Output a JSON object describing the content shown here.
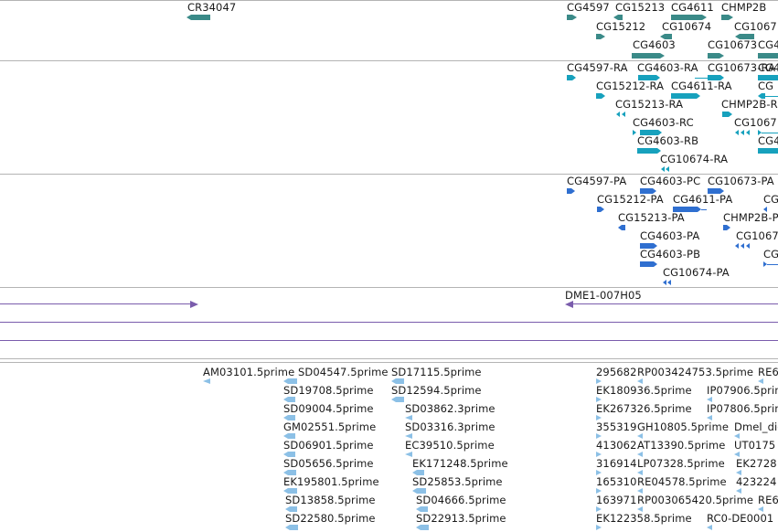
{
  "colors": {
    "gene": "#3a8a88",
    "mrna": "#17a1bd",
    "cds": "#2f6fd0",
    "ctg": "#7a5cac",
    "est": "#8cc0e6",
    "separator": "#b4b4b4"
  },
  "tracks": {
    "genes": {
      "labels": [
        "CR34047",
        "CG4597",
        "CG15213",
        "CG4611",
        "CHMP2B",
        "CG15212",
        "CG10674",
        "CG1067",
        "CG4603",
        "CG10673",
        "CG4"
      ]
    },
    "mrna": {
      "labels": [
        "CG4597-RA",
        "CG4603-RA",
        "CG10673-RA",
        "CG4",
        "CG15212-RA",
        "CG4611-RA",
        "CG",
        "CG15213-RA",
        "CHMP2B-R",
        "CG4603-RC",
        "CG1067",
        "CG4603-RB",
        "CG4",
        "CG10674-RA"
      ]
    },
    "cds": {
      "labels": [
        "CG4597-PA",
        "CG4603-PC",
        "CG10673-PA",
        "CG15212-PA",
        "CG4611-PA",
        "CG",
        "CG15213-PA",
        "CHMP2B-P",
        "CG4603-PA",
        "CG1067",
        "CG4603-PB",
        "CG",
        "CG10674-PA"
      ]
    },
    "contigs": {
      "labels": [
        "DME1-007H05"
      ]
    },
    "ests": {
      "labels": [
        "AM03101.5prime",
        "SD04547.5prime",
        "SD17115.5prime",
        "SD19708.5prime",
        "SD12594.5prime",
        "SD09004.5prime",
        "SD03862.3prime",
        "GM02551.5prime",
        "SD03316.3prime",
        "SD06901.5prime",
        "EC39510.5prime",
        "SD05656.5prime",
        "EK171248.5prime",
        "EK195801.5prime",
        "SD25853.5prime",
        "SD13858.5prime",
        "SD04666.5prime",
        "SD22580.5prime",
        "SD22913.5prime",
        "295682",
        "RP003424753.5prime",
        "RE6",
        "EK180936.5prime",
        "IP07906.5prime",
        "EK267326.5prime",
        "IP07806.5prime",
        "355319",
        "GH10805.5prime",
        "Dmel_dig",
        "413062",
        "AT13390.5prime",
        "UT0175",
        "316914",
        "LP07328.5prime",
        "EK2728",
        "165310",
        "RE04578.5prime",
        "423224",
        "163971",
        "RP003065420.5prime",
        "RE6",
        "EK122358.5prime",
        "RC0-DE0001"
      ]
    }
  }
}
